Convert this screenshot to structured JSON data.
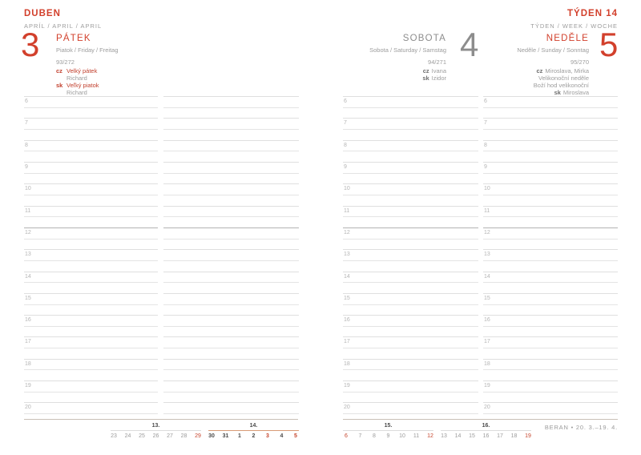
{
  "page_header": {
    "month_title": "DUBEN",
    "month_subtitle": "APRÍL / APRIL / APRIL",
    "week_title": "TÝDEN 14",
    "week_subtitle": "TÝDEN / WEEK / WOCHE"
  },
  "days": [
    {
      "number": "3",
      "name": "PÁTEK",
      "subtitle": "Piatok / Friday / Freitag",
      "day_of_year": "93/272",
      "accent": true,
      "notes": [
        {
          "prefix": "cz",
          "text": "Velký pátek",
          "style": "red"
        },
        {
          "prefix": "",
          "text": "Richard",
          "style": "gray"
        },
        {
          "prefix": "sk",
          "text": "Veľký piatok",
          "style": "red"
        },
        {
          "prefix": "",
          "text": "Richard",
          "style": "gray"
        }
      ]
    },
    {
      "number": "4",
      "name": "SOBOTA",
      "subtitle": "Sobota / Saturday / Samstag",
      "day_of_year": "94/271",
      "accent": false,
      "notes": [
        {
          "prefix": "cz",
          "text": "Ivana",
          "style": "gray"
        },
        {
          "prefix": "sk",
          "text": "Izidor",
          "style": "gray"
        }
      ]
    },
    {
      "number": "5",
      "name": "NEDĚLE",
      "subtitle": "Neděle / Sunday / Sonntag",
      "day_of_year": "95/270",
      "accent": true,
      "notes": [
        {
          "prefix": "cz",
          "text": "Miroslava, Mirka",
          "style": "gray"
        },
        {
          "prefix": "",
          "text": "Velikonoční neděle",
          "style": "gray"
        },
        {
          "prefix": "",
          "text": "Boží hod velikonoční",
          "style": "gray"
        },
        {
          "prefix": "sk",
          "text": "Miroslava",
          "style": "gray"
        }
      ]
    }
  ],
  "grid": {
    "hours": [
      "6",
      "7",
      "8",
      "9",
      "10",
      "11",
      "12",
      "13",
      "14",
      "15",
      "16",
      "17",
      "18",
      "19",
      "20"
    ],
    "noon_hour": "12"
  },
  "mini_calendar": {
    "left": [
      {
        "label": "13.",
        "current": false,
        "days": [
          {
            "d": "23",
            "style": "gray"
          },
          {
            "d": "24",
            "style": "gray"
          },
          {
            "d": "25",
            "style": "gray"
          },
          {
            "d": "26",
            "style": "gray"
          },
          {
            "d": "27",
            "style": "gray"
          },
          {
            "d": "28",
            "style": "gray"
          },
          {
            "d": "29",
            "style": "red"
          }
        ]
      },
      {
        "label": "14.",
        "current": true,
        "days": [
          {
            "d": "30",
            "style": "bold"
          },
          {
            "d": "31",
            "style": "bold"
          },
          {
            "d": "1",
            "style": "bold"
          },
          {
            "d": "2",
            "style": "bold"
          },
          {
            "d": "3",
            "style": "red-bold"
          },
          {
            "d": "4",
            "style": "bold"
          },
          {
            "d": "5",
            "style": "red-bold"
          }
        ]
      }
    ],
    "right": [
      {
        "label": "15.",
        "current": false,
        "days": [
          {
            "d": "6",
            "style": "red"
          },
          {
            "d": "7",
            "style": "gray"
          },
          {
            "d": "8",
            "style": "gray"
          },
          {
            "d": "9",
            "style": "gray"
          },
          {
            "d": "10",
            "style": "gray"
          },
          {
            "d": "11",
            "style": "gray"
          },
          {
            "d": "12",
            "style": "red"
          }
        ]
      },
      {
        "label": "16.",
        "current": false,
        "days": [
          {
            "d": "13",
            "style": "gray"
          },
          {
            "d": "14",
            "style": "gray"
          },
          {
            "d": "15",
            "style": "gray"
          },
          {
            "d": "16",
            "style": "gray"
          },
          {
            "d": "17",
            "style": "gray"
          },
          {
            "d": "18",
            "style": "gray"
          },
          {
            "d": "19",
            "style": "red"
          }
        ]
      }
    ]
  },
  "footer": {
    "zodiac": "BERAN • 20. 3.–19. 4."
  },
  "colors": {
    "accent_red": "#d2402c",
    "holiday_red": "#c2402e",
    "minical_red": "#c6452d",
    "text_gray": "#9d9d9d",
    "noon_line": "#b3b3b3",
    "current_week_underline": "#d89b77"
  }
}
